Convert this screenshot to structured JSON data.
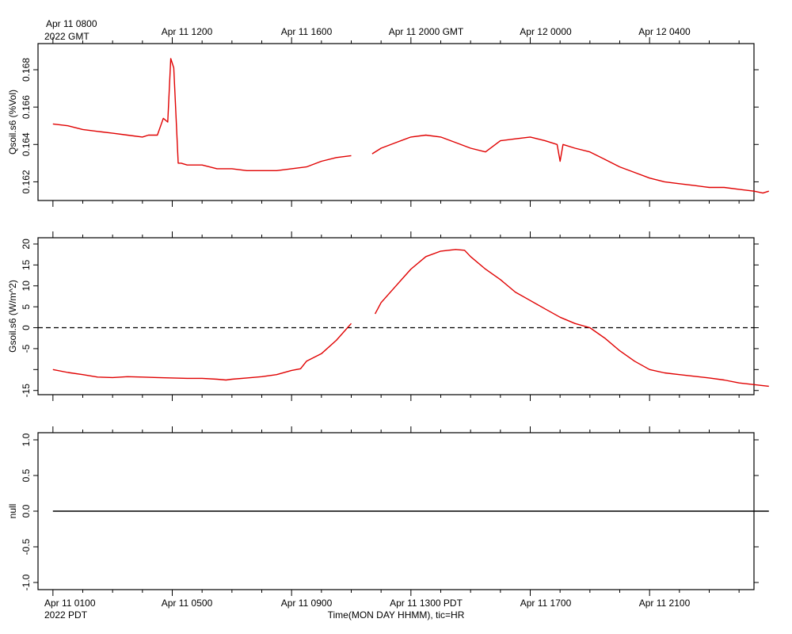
{
  "top_axis": {
    "first_label": "Apr 11 0800",
    "first_sub": "2022 GMT",
    "labels": [
      "Apr 11 1200",
      "Apr 11 1600",
      "Apr 11 2000 GMT",
      "Apr 12 0000",
      "Apr 12 0400"
    ]
  },
  "bottom_axis": {
    "first_label": "Apr 11 0100",
    "first_sub": "2022 PDT",
    "labels": [
      "Apr 11 0500",
      "Apr 11 0900",
      "Apr 11 1300 PDT",
      "Apr 11 1700",
      "Apr 11 2100"
    ],
    "title": "Time(MON DAY HHMM), tic=HR"
  },
  "colors": {
    "series": "#e00000",
    "axis": "#000000"
  },
  "chart_data": [
    {
      "type": "line",
      "ylabel": "Qsoil.s6 (%Vol)",
      "ylim": [
        0.161,
        0.1694
      ],
      "yticks": [
        0.162,
        0.164,
        0.166,
        0.168
      ],
      "ytick_labels": [
        "0.162",
        "0.164",
        "0.166",
        "0.168"
      ],
      "x_hours_pdt": [
        0.0,
        0.5,
        1.0,
        1.5,
        2.0,
        2.5,
        3.0,
        3.2,
        3.5,
        3.7,
        3.85,
        3.95,
        4.05,
        4.2,
        4.3,
        4.5,
        5.0,
        5.5,
        6.0,
        6.5,
        7.0,
        7.5,
        8.0,
        8.5,
        9.0,
        9.5,
        10.0,
        10.5,
        10.7,
        11.0,
        11.5,
        12.0,
        12.5,
        13.0,
        13.5,
        14.0,
        14.5,
        15.0,
        15.5,
        16.0,
        16.5,
        16.9,
        17.0,
        17.1,
        17.5,
        18.0,
        18.5,
        19.0,
        19.5,
        20.0,
        20.5,
        21.0,
        21.5,
        22.0,
        22.5,
        23.0,
        23.5,
        23.8,
        24.0
      ],
      "values": [
        0.1651,
        0.165,
        0.1648,
        0.1647,
        0.1646,
        0.1645,
        0.1644,
        0.1645,
        0.1645,
        0.1654,
        0.1652,
        0.1686,
        0.1681,
        0.163,
        0.163,
        0.1629,
        0.1629,
        0.1627,
        0.1627,
        0.1626,
        0.1626,
        0.1626,
        0.1627,
        0.1628,
        0.1631,
        0.1633,
        0.1634,
        null,
        0.1635,
        0.1638,
        0.1641,
        0.1644,
        0.1645,
        0.1644,
        0.1641,
        0.1638,
        0.1636,
        0.1642,
        0.1643,
        0.1644,
        0.1642,
        0.164,
        0.1631,
        0.164,
        0.1638,
        0.1636,
        0.1632,
        0.1628,
        0.1625,
        0.1622,
        0.162,
        0.1619,
        0.1618,
        0.1617,
        0.1617,
        0.1616,
        0.1615,
        0.1614,
        0.1615
      ]
    },
    {
      "type": "line",
      "ylabel": "Gsoil.s6 (W/m^2)",
      "ylim": [
        -16,
        21.5
      ],
      "yticks": [
        -15,
        -10,
        -5,
        0,
        5,
        10,
        15,
        20
      ],
      "ytick_labels": [
        "-15",
        "",
        "-5",
        "0",
        "5",
        "10",
        "15",
        "20"
      ],
      "zero_line": true,
      "x_hours_pdt": [
        0.0,
        0.5,
        1.0,
        1.5,
        2.0,
        2.5,
        3.0,
        3.5,
        4.0,
        4.5,
        5.0,
        5.5,
        5.8,
        6.0,
        6.5,
        7.0,
        7.5,
        8.0,
        8.3,
        8.5,
        9.0,
        9.5,
        10.0,
        10.5,
        10.8,
        11.0,
        11.5,
        12.0,
        12.5,
        13.0,
        13.5,
        13.8,
        14.0,
        14.5,
        15.0,
        15.5,
        16.0,
        16.5,
        17.0,
        17.5,
        18.0,
        18.5,
        19.0,
        19.5,
        20.0,
        20.5,
        21.0,
        21.5,
        22.0,
        22.5,
        23.0,
        23.5,
        24.0
      ],
      "values": [
        -10.0,
        -10.7,
        -11.2,
        -11.8,
        -11.9,
        -11.7,
        -11.8,
        -11.9,
        -12.0,
        -12.1,
        -12.1,
        -12.3,
        -12.5,
        -12.3,
        -12.0,
        -11.7,
        -11.2,
        -10.2,
        -9.8,
        -8.0,
        -6.2,
        -3.0,
        1.0,
        null,
        3.3,
        6.0,
        10.0,
        14.0,
        17.0,
        18.3,
        18.7,
        18.5,
        17.0,
        14.0,
        11.5,
        8.5,
        6.5,
        4.5,
        2.5,
        1.0,
        0.0,
        -2.5,
        -5.5,
        -8.0,
        -10.0,
        -10.8,
        -11.2,
        -11.6,
        -12.0,
        -12.5,
        -13.2,
        -13.6,
        -14.0
      ]
    },
    {
      "type": "line",
      "ylabel": "null",
      "ylim": [
        -1.1,
        1.1
      ],
      "yticks": [
        -1.0,
        -0.5,
        0.0,
        0.5,
        1.0
      ],
      "ytick_labels": [
        "-1.0",
        "-0.5",
        "0.0",
        "0.5",
        "1.0"
      ],
      "x_hours_pdt": [
        0,
        24
      ],
      "values": [
        0.0,
        0.0
      ]
    }
  ]
}
